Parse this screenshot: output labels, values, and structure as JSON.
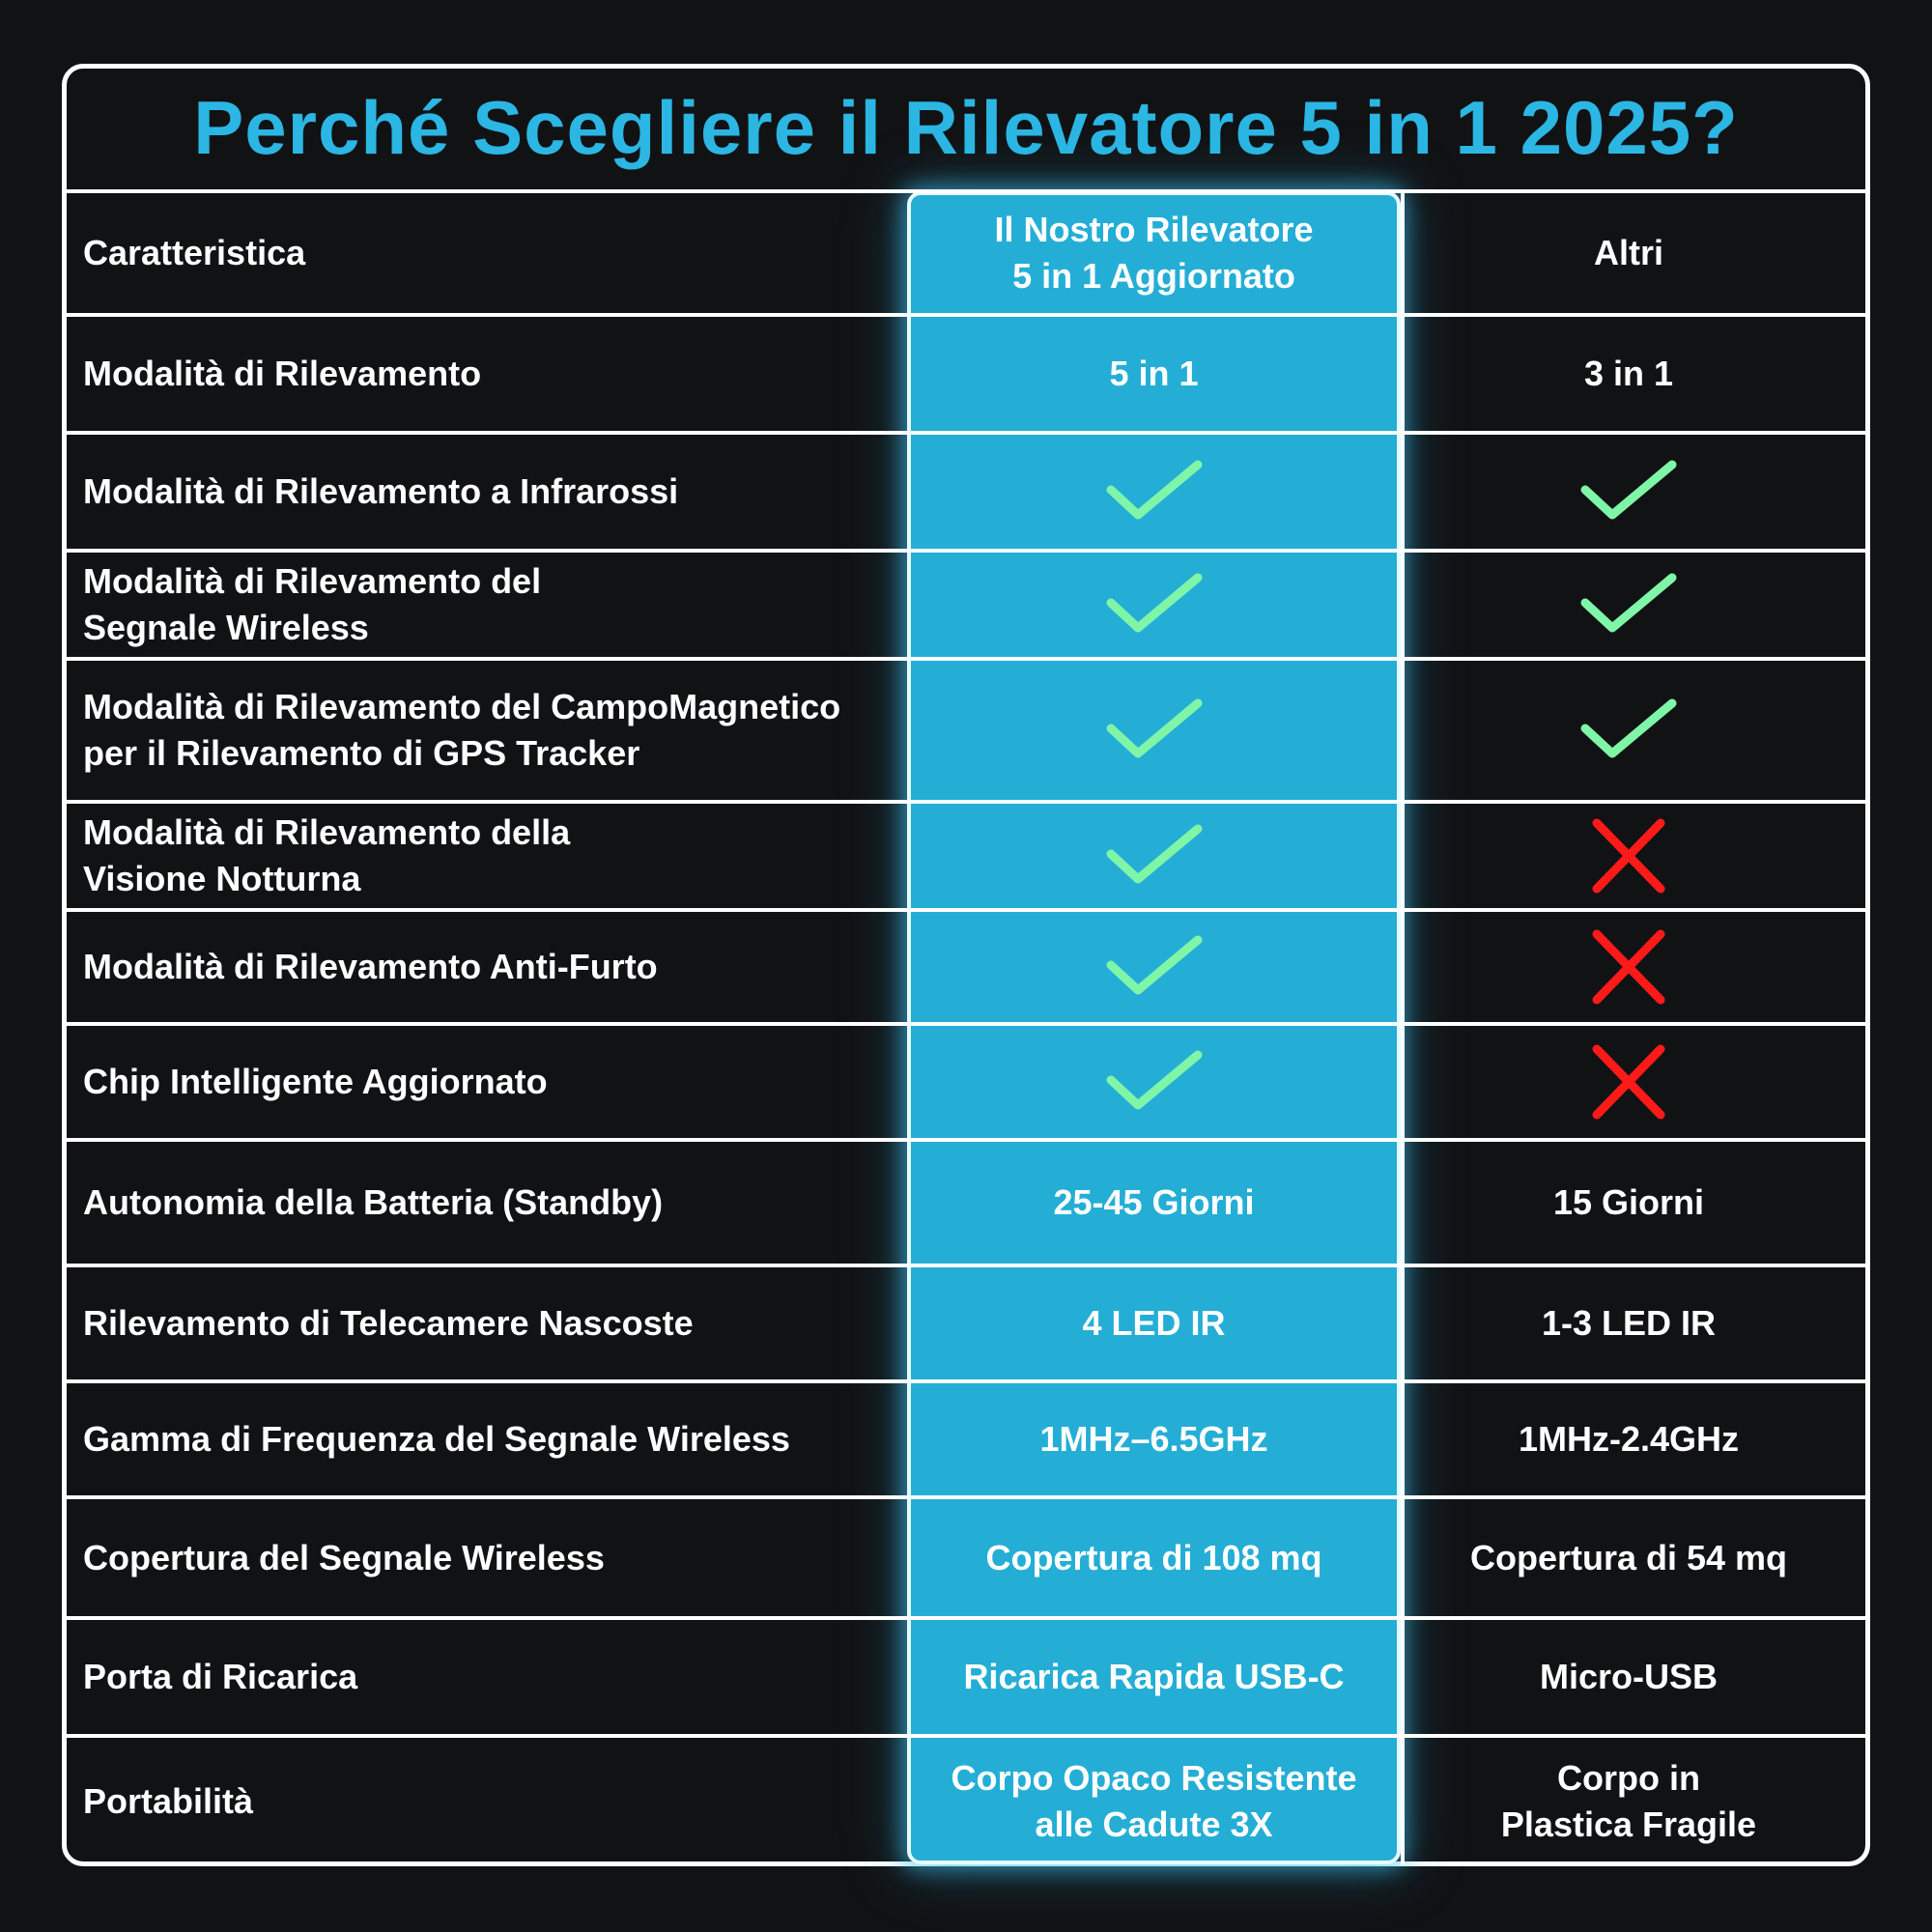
{
  "title": "Perché Scegliere il Rilevatore 5 in 1 2025?",
  "colors": {
    "accent": "#2bb6e3",
    "highlight_column": "#24aed6",
    "check": "#7ff5a8",
    "cross": "#ff1a1a",
    "background": "#111214"
  },
  "header": {
    "feature": "Caratteristica",
    "ours": "Il Nostro Rilevatore\n5 in 1 Aggiornato",
    "others": "Altri"
  },
  "rows": [
    {
      "feature": "Modalità di Rilevamento",
      "ours": "5 in 1",
      "others": "3 in 1"
    },
    {
      "feature": "Modalità di Rilevamento a Infrarossi",
      "ours_icon": "check-icon",
      "others_icon": "check-icon"
    },
    {
      "feature": "Modalità di Rilevamento del\nSegnale Wireless",
      "ours_icon": "check-icon",
      "others_icon": "check-icon"
    },
    {
      "feature": "Modalità di Rilevamento del CampoMagnetico\nper il Rilevamento di GPS Tracker",
      "ours_icon": "check-icon",
      "others_icon": "check-icon"
    },
    {
      "feature": "Modalità di Rilevamento della\nVisione Notturna",
      "ours_icon": "check-icon",
      "others_icon": "cross-icon"
    },
    {
      "feature": "Modalità di Rilevamento Anti-Furto",
      "ours_icon": "check-icon",
      "others_icon": "cross-icon"
    },
    {
      "feature": "Chip Intelligente Aggiornato",
      "ours_icon": "check-icon",
      "others_icon": "cross-icon"
    },
    {
      "feature": "Autonomia della Batteria (Standby)",
      "ours": "25-45 Giorni",
      "others": "15 Giorni"
    },
    {
      "feature": "Rilevamento di Telecamere Nascoste",
      "ours": "4 LED IR",
      "others": "1-3 LED IR"
    },
    {
      "feature": "Gamma di Frequenza del Segnale Wireless",
      "ours": "1MHz–6.5GHz",
      "others": "1MHz-2.4GHz"
    },
    {
      "feature": "Copertura del Segnale Wireless",
      "ours": "Copertura di 108 mq",
      "others": "Copertura di 54 mq"
    },
    {
      "feature": "Porta di Ricarica",
      "ours": "Ricarica Rapida USB-C",
      "others": "Micro-USB"
    },
    {
      "feature": "Portabilità",
      "ours": "Corpo Opaco Resistente\nalle Cadute 3X",
      "others": "Corpo in\nPlastica Fragile"
    }
  ]
}
